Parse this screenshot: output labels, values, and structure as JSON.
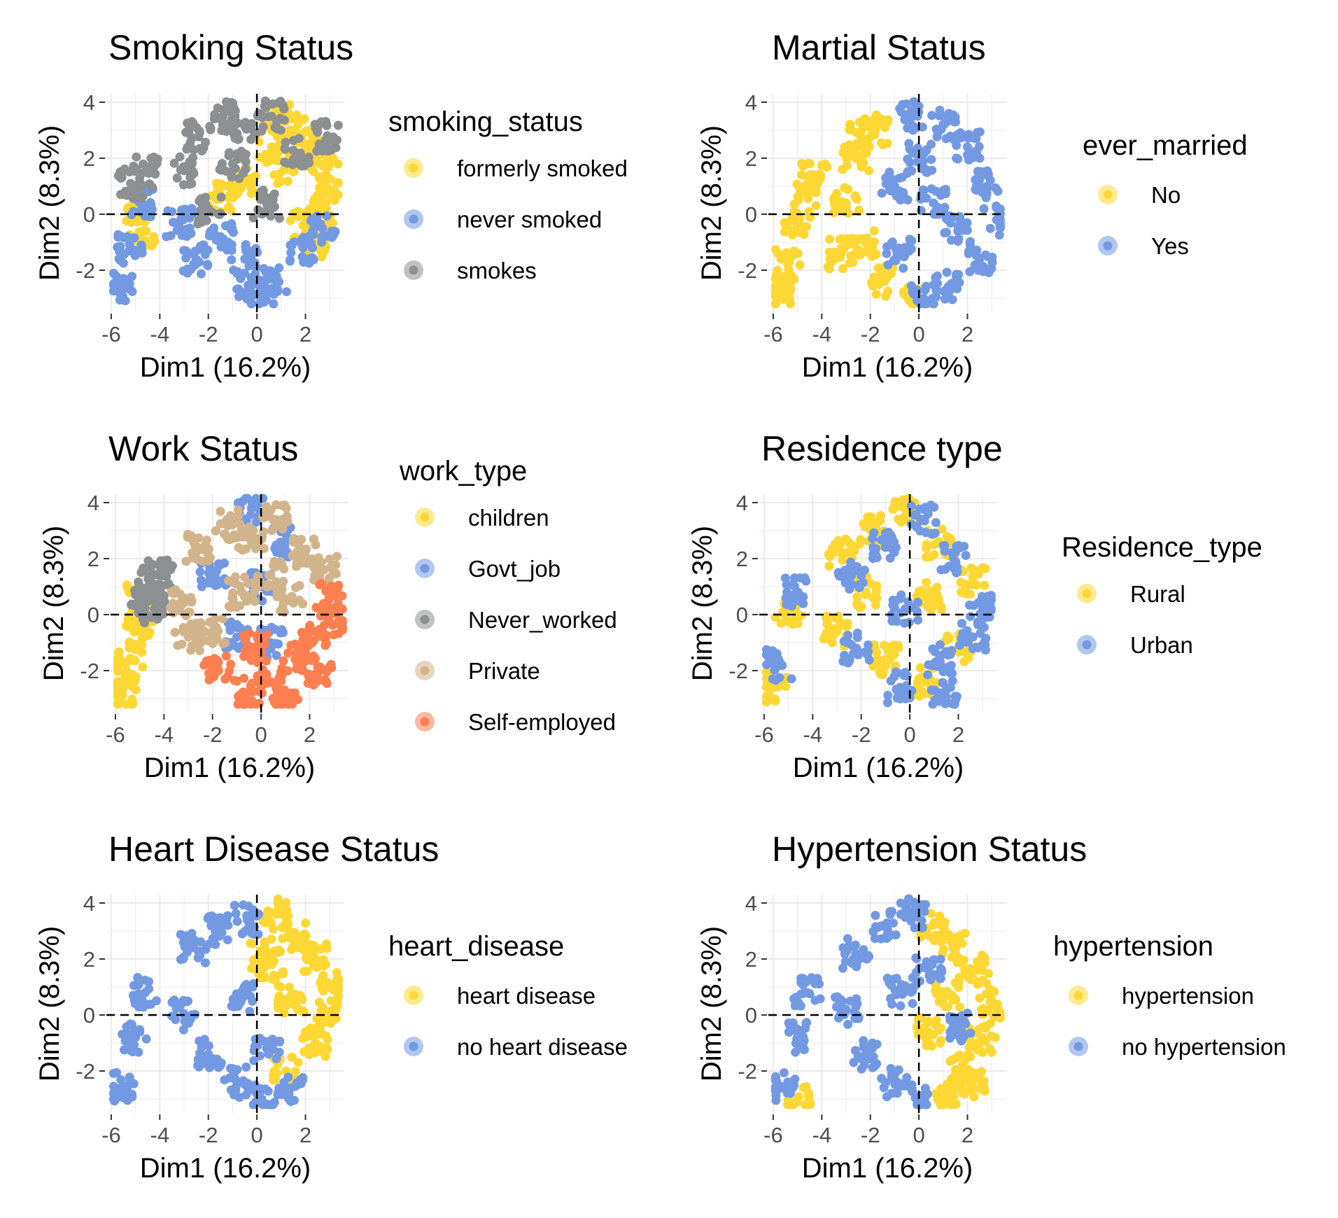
{
  "colors": {
    "yellow": "#FDD835",
    "blue": "#7399E2",
    "gray": "#8C9092",
    "tan": "#D2B48C",
    "orange": "#FF7F50",
    "grid": "#EBEBEB"
  },
  "chart_data": [
    {
      "type": "scatter",
      "title": "Smoking Status",
      "xlabel": "Dim1 (16.2%)",
      "ylabel": "Dim2 (8.3%)",
      "xlim": [
        -6.2,
        3.6
      ],
      "ylim": [
        -3.5,
        4.3
      ],
      "xticks": [
        "-6",
        "-4",
        "-2",
        "0",
        "2"
      ],
      "yticks": [
        "-2",
        "0",
        "2",
        "4"
      ],
      "legend": {
        "title": "smoking_status",
        "entries": [
          {
            "label": "formerly smoked",
            "color": "#FDD835"
          },
          {
            "label": "never smoked",
            "color": "#7399E2"
          },
          {
            "label": "smokes",
            "color": "#8C9092"
          }
        ]
      },
      "series": [
        {
          "name": "formerly smoked",
          "color": "#FDD835",
          "points": [
            [
              1.5,
              3.0
            ],
            [
              2.2,
              2.5
            ],
            [
              2.8,
              1.8
            ],
            [
              3.0,
              0.9
            ],
            [
              2.6,
              0.2
            ],
            [
              1.9,
              -0.4
            ],
            [
              1.2,
              1.6
            ],
            [
              0.6,
              2.4
            ],
            [
              -0.4,
              1.2
            ],
            [
              -1.5,
              0.6
            ],
            [
              -5.0,
              0.3
            ],
            [
              -4.7,
              -0.6
            ],
            [
              2.4,
              -1.0
            ],
            [
              0.8,
              3.4
            ]
          ]
        },
        {
          "name": "never smoked",
          "color": "#7399E2",
          "points": [
            [
              -1.5,
              -0.8
            ],
            [
              -0.5,
              -1.6
            ],
            [
              0.8,
              -2.4
            ],
            [
              1.9,
              -1.2
            ],
            [
              2.7,
              -0.5
            ],
            [
              -2.5,
              -1.6
            ],
            [
              -3.2,
              -0.3
            ],
            [
              0.2,
              -3.0
            ],
            [
              -5.6,
              -2.6
            ],
            [
              -5.2,
              -1.2
            ],
            [
              -4.8,
              0.4
            ],
            [
              -0.3,
              -2.7
            ]
          ]
        },
        {
          "name": "smokes",
          "color": "#8C9092",
          "points": [
            [
              -2.4,
              2.8
            ],
            [
              -1.4,
              3.5
            ],
            [
              -0.4,
              3.2
            ],
            [
              0.6,
              3.5
            ],
            [
              1.6,
              2.2
            ],
            [
              -3.0,
              1.6
            ],
            [
              -1.0,
              1.8
            ],
            [
              0.4,
              0.4
            ],
            [
              -2.0,
              0.2
            ],
            [
              -5.2,
              1.1
            ],
            [
              -4.6,
              1.5
            ],
            [
              2.9,
              2.8
            ]
          ]
        }
      ]
    },
    {
      "type": "scatter",
      "title": "Martial Status",
      "xlabel": "Dim1 (16.2%)",
      "ylabel": "Dim2 (8.3%)",
      "xlim": [
        -6.2,
        3.6
      ],
      "ylim": [
        -3.5,
        4.3
      ],
      "xticks": [
        "-6",
        "-4",
        "-2",
        "0",
        "2"
      ],
      "yticks": [
        "-2",
        "0",
        "2",
        "4"
      ],
      "legend": {
        "title": "ever_married",
        "entries": [
          {
            "label": "No",
            "color": "#FDD835"
          },
          {
            "label": "Yes",
            "color": "#7399E2"
          }
        ]
      },
      "series": [
        {
          "name": "No",
          "color": "#FDD835",
          "points": [
            [
              -5.8,
              -2.8
            ],
            [
              -5.4,
              -1.8
            ],
            [
              -5.0,
              -0.4
            ],
            [
              -4.6,
              0.8
            ],
            [
              -4.3,
              1.4
            ],
            [
              -3.0,
              0.4
            ],
            [
              -2.6,
              2.0
            ],
            [
              -2.2,
              -1.0
            ],
            [
              -1.8,
              3.0
            ],
            [
              -1.4,
              -2.4
            ],
            [
              -3.2,
              -1.4
            ],
            [
              -2.4,
              2.8
            ],
            [
              -0.1,
              -3.1
            ]
          ]
        },
        {
          "name": "Yes",
          "color": "#7399E2",
          "points": [
            [
              0.0,
              2.0
            ],
            [
              1.0,
              3.2
            ],
            [
              2.0,
              2.4
            ],
            [
              2.8,
              1.0
            ],
            [
              3.2,
              -0.2
            ],
            [
              2.5,
              -1.6
            ],
            [
              1.2,
              -2.6
            ],
            [
              0.2,
              -3.0
            ],
            [
              -0.8,
              -1.4
            ],
            [
              -1.0,
              1.0
            ],
            [
              0.6,
              0.4
            ],
            [
              1.6,
              -0.6
            ],
            [
              -0.4,
              3.5
            ]
          ]
        }
      ]
    },
    {
      "type": "scatter",
      "title": "Work Status",
      "xlabel": "Dim1 (16.2%)",
      "ylabel": "Dim2 (8.3%)",
      "xlim": [
        -6.2,
        3.6
      ],
      "ylim": [
        -3.5,
        4.3
      ],
      "xticks": [
        "-6",
        "-4",
        "-2",
        "0",
        "2"
      ],
      "yticks": [
        "-2",
        "0",
        "2",
        "4"
      ],
      "legend": {
        "title": "work_type",
        "entries": [
          {
            "label": "children",
            "color": "#FDD835"
          },
          {
            "label": "Govt_job",
            "color": "#7399E2"
          },
          {
            "label": "Never_worked",
            "color": "#8C9092"
          },
          {
            "label": "Private",
            "color": "#D2B48C"
          },
          {
            "label": "Self-employed",
            "color": "#FF7F50"
          }
        ]
      },
      "series": [
        {
          "name": "children",
          "color": "#FDD835",
          "points": [
            [
              -5.8,
              -2.8
            ],
            [
              -5.4,
              -1.6
            ],
            [
              -5.1,
              -0.6
            ],
            [
              -4.8,
              0.2
            ],
            [
              -5.0,
              0.6
            ],
            [
              -5.6,
              -2.2
            ]
          ]
        },
        {
          "name": "Govt_job",
          "color": "#7399E2",
          "points": [
            [
              -1.0,
              -0.8
            ],
            [
              0.0,
              1.0
            ],
            [
              1.0,
              2.6
            ],
            [
              -2.0,
              1.4
            ],
            [
              0.4,
              -1.0
            ],
            [
              -0.4,
              3.8
            ]
          ]
        },
        {
          "name": "Never_worked",
          "color": "#8C9092",
          "points": [
            [
              -4.6,
              1.2
            ],
            [
              -4.2,
              1.4
            ],
            [
              -4.8,
              0.6
            ],
            [
              -4.4,
              0.2
            ]
          ]
        },
        {
          "name": "Private",
          "color": "#D2B48C",
          "points": [
            [
              -2.6,
              2.4
            ],
            [
              -1.4,
              3.2
            ],
            [
              -0.4,
              2.6
            ],
            [
              0.6,
              3.4
            ],
            [
              1.8,
              2.2
            ],
            [
              2.6,
              1.6
            ],
            [
              -3.2,
              0.4
            ],
            [
              -2.0,
              -0.6
            ],
            [
              -0.8,
              0.8
            ],
            [
              0.4,
              1.4
            ],
            [
              -3.0,
              -0.8
            ],
            [
              1.2,
              0.6
            ]
          ]
        },
        {
          "name": "Self-employed",
          "color": "#FF7F50",
          "points": [
            [
              2.8,
              0.6
            ],
            [
              2.2,
              -0.6
            ],
            [
              1.4,
              -1.6
            ],
            [
              0.4,
              -2.4
            ],
            [
              -0.6,
              -2.8
            ],
            [
              -1.8,
              -1.8
            ],
            [
              3.2,
              -0.2
            ],
            [
              1.0,
              -3.1
            ],
            [
              -0.2,
              -1.2
            ],
            [
              2.4,
              -2.0
            ]
          ]
        }
      ]
    },
    {
      "type": "scatter",
      "title": "Residence type",
      "xlabel": "Dim1 (16.2%)",
      "ylabel": "Dim2 (8.3%)",
      "xlim": [
        -6.2,
        3.6
      ],
      "ylim": [
        -3.5,
        4.3
      ],
      "xticks": [
        "-6",
        "-4",
        "-2",
        "0",
        "2"
      ],
      "yticks": [
        "-2",
        "0",
        "2",
        "4"
      ],
      "legend": {
        "title": "Residence_type",
        "entries": [
          {
            "label": "Rural",
            "color": "#FDD835"
          },
          {
            "label": "Urban",
            "color": "#7399E2"
          }
        ]
      },
      "series": [
        {
          "name": "Rural",
          "color": "#FDD835",
          "points": [
            [
              -2.8,
              2.2
            ],
            [
              -1.6,
              3.0
            ],
            [
              -0.2,
              3.8
            ],
            [
              1.2,
              2.6
            ],
            [
              2.6,
              1.2
            ],
            [
              -3.0,
              -0.6
            ],
            [
              -1.0,
              -1.6
            ],
            [
              0.6,
              -2.4
            ],
            [
              2.0,
              -1.2
            ],
            [
              -5.6,
              -2.6
            ],
            [
              -5.0,
              0.2
            ],
            [
              0.8,
              0.6
            ],
            [
              -1.8,
              0.8
            ]
          ]
        },
        {
          "name": "Urban",
          "color": "#7399E2",
          "points": [
            [
              -2.4,
              1.4
            ],
            [
              -1.0,
              2.4
            ],
            [
              0.6,
              3.4
            ],
            [
              1.8,
              2.0
            ],
            [
              3.0,
              0.2
            ],
            [
              -2.2,
              -1.2
            ],
            [
              -0.4,
              -2.6
            ],
            [
              1.2,
              -1.6
            ],
            [
              2.6,
              -0.8
            ],
            [
              -5.4,
              -1.8
            ],
            [
              -4.6,
              0.8
            ],
            [
              -0.2,
              0.2
            ],
            [
              1.4,
              -2.9
            ]
          ]
        }
      ]
    },
    {
      "type": "scatter",
      "title": "Heart Disease Status",
      "xlabel": "Dim1 (16.2%)",
      "ylabel": "Dim2 (8.3%)",
      "xlim": [
        -6.2,
        3.6
      ],
      "ylim": [
        -3.5,
        4.3
      ],
      "xticks": [
        "-6",
        "-4",
        "-2",
        "0",
        "2"
      ],
      "yticks": [
        "-2",
        "0",
        "2",
        "4"
      ],
      "legend": {
        "title": "heart_disease",
        "entries": [
          {
            "label": "heart disease",
            "color": "#FDD835"
          },
          {
            "label": "no heart disease",
            "color": "#7399E2"
          }
        ]
      },
      "series": [
        {
          "name": "heart disease",
          "color": "#FDD835",
          "points": [
            [
              0.8,
              3.6
            ],
            [
              1.6,
              2.8
            ],
            [
              2.4,
              2.0
            ],
            [
              3.0,
              1.0
            ],
            [
              2.8,
              0.0
            ],
            [
              2.4,
              -1.0
            ],
            [
              1.4,
              0.6
            ],
            [
              0.6,
              1.8
            ],
            [
              1.2,
              -2.0
            ],
            [
              0.2,
              2.2
            ]
          ]
        },
        {
          "name": "no heart disease",
          "color": "#7399E2",
          "points": [
            [
              -2.6,
              2.4
            ],
            [
              -1.6,
              3.0
            ],
            [
              -0.4,
              3.4
            ],
            [
              -3.0,
              0.0
            ],
            [
              -2.0,
              -1.4
            ],
            [
              -0.8,
              -2.4
            ],
            [
              0.2,
              -3.0
            ],
            [
              -0.6,
              0.6
            ],
            [
              0.4,
              -1.2
            ],
            [
              -5.6,
              -2.6
            ],
            [
              -5.0,
              -0.8
            ],
            [
              -4.6,
              0.8
            ],
            [
              1.4,
              -2.6
            ]
          ]
        }
      ]
    },
    {
      "type": "scatter",
      "title": "Hypertension Status",
      "xlabel": "Dim1 (16.2%)",
      "ylabel": "Dim2 (8.3%)",
      "xlim": [
        -6.2,
        3.6
      ],
      "ylim": [
        -3.5,
        4.3
      ],
      "xticks": [
        "-6",
        "-4",
        "-2",
        "0",
        "2"
      ],
      "yticks": [
        "-2",
        "0",
        "2",
        "4"
      ],
      "legend": {
        "title": "hypertension",
        "entries": [
          {
            "label": "hypertension",
            "color": "#FDD835"
          },
          {
            "label": "no hypertension",
            "color": "#7399E2"
          }
        ]
      },
      "series": [
        {
          "name": "hypertension",
          "color": "#FDD835",
          "points": [
            [
              0.6,
              3.2
            ],
            [
              1.4,
              2.4
            ],
            [
              2.4,
              1.6
            ],
            [
              3.0,
              0.4
            ],
            [
              2.6,
              -0.8
            ],
            [
              1.8,
              -1.8
            ],
            [
              1.0,
              -2.8
            ],
            [
              0.4,
              -0.6
            ],
            [
              1.2,
              0.8
            ],
            [
              -5.0,
              -3.1
            ],
            [
              2.2,
              -2.4
            ]
          ]
        },
        {
          "name": "no hypertension",
          "color": "#7399E2",
          "points": [
            [
              -2.6,
              2.2
            ],
            [
              -1.4,
              3.2
            ],
            [
              -0.2,
              3.6
            ],
            [
              -3.0,
              0.2
            ],
            [
              -2.2,
              -1.4
            ],
            [
              -1.0,
              -2.4
            ],
            [
              0.0,
              -3.0
            ],
            [
              -0.8,
              0.8
            ],
            [
              0.4,
              1.6
            ],
            [
              -5.6,
              -2.6
            ],
            [
              -5.0,
              -0.8
            ],
            [
              -4.6,
              0.8
            ],
            [
              1.6,
              -0.4
            ]
          ]
        }
      ]
    }
  ]
}
